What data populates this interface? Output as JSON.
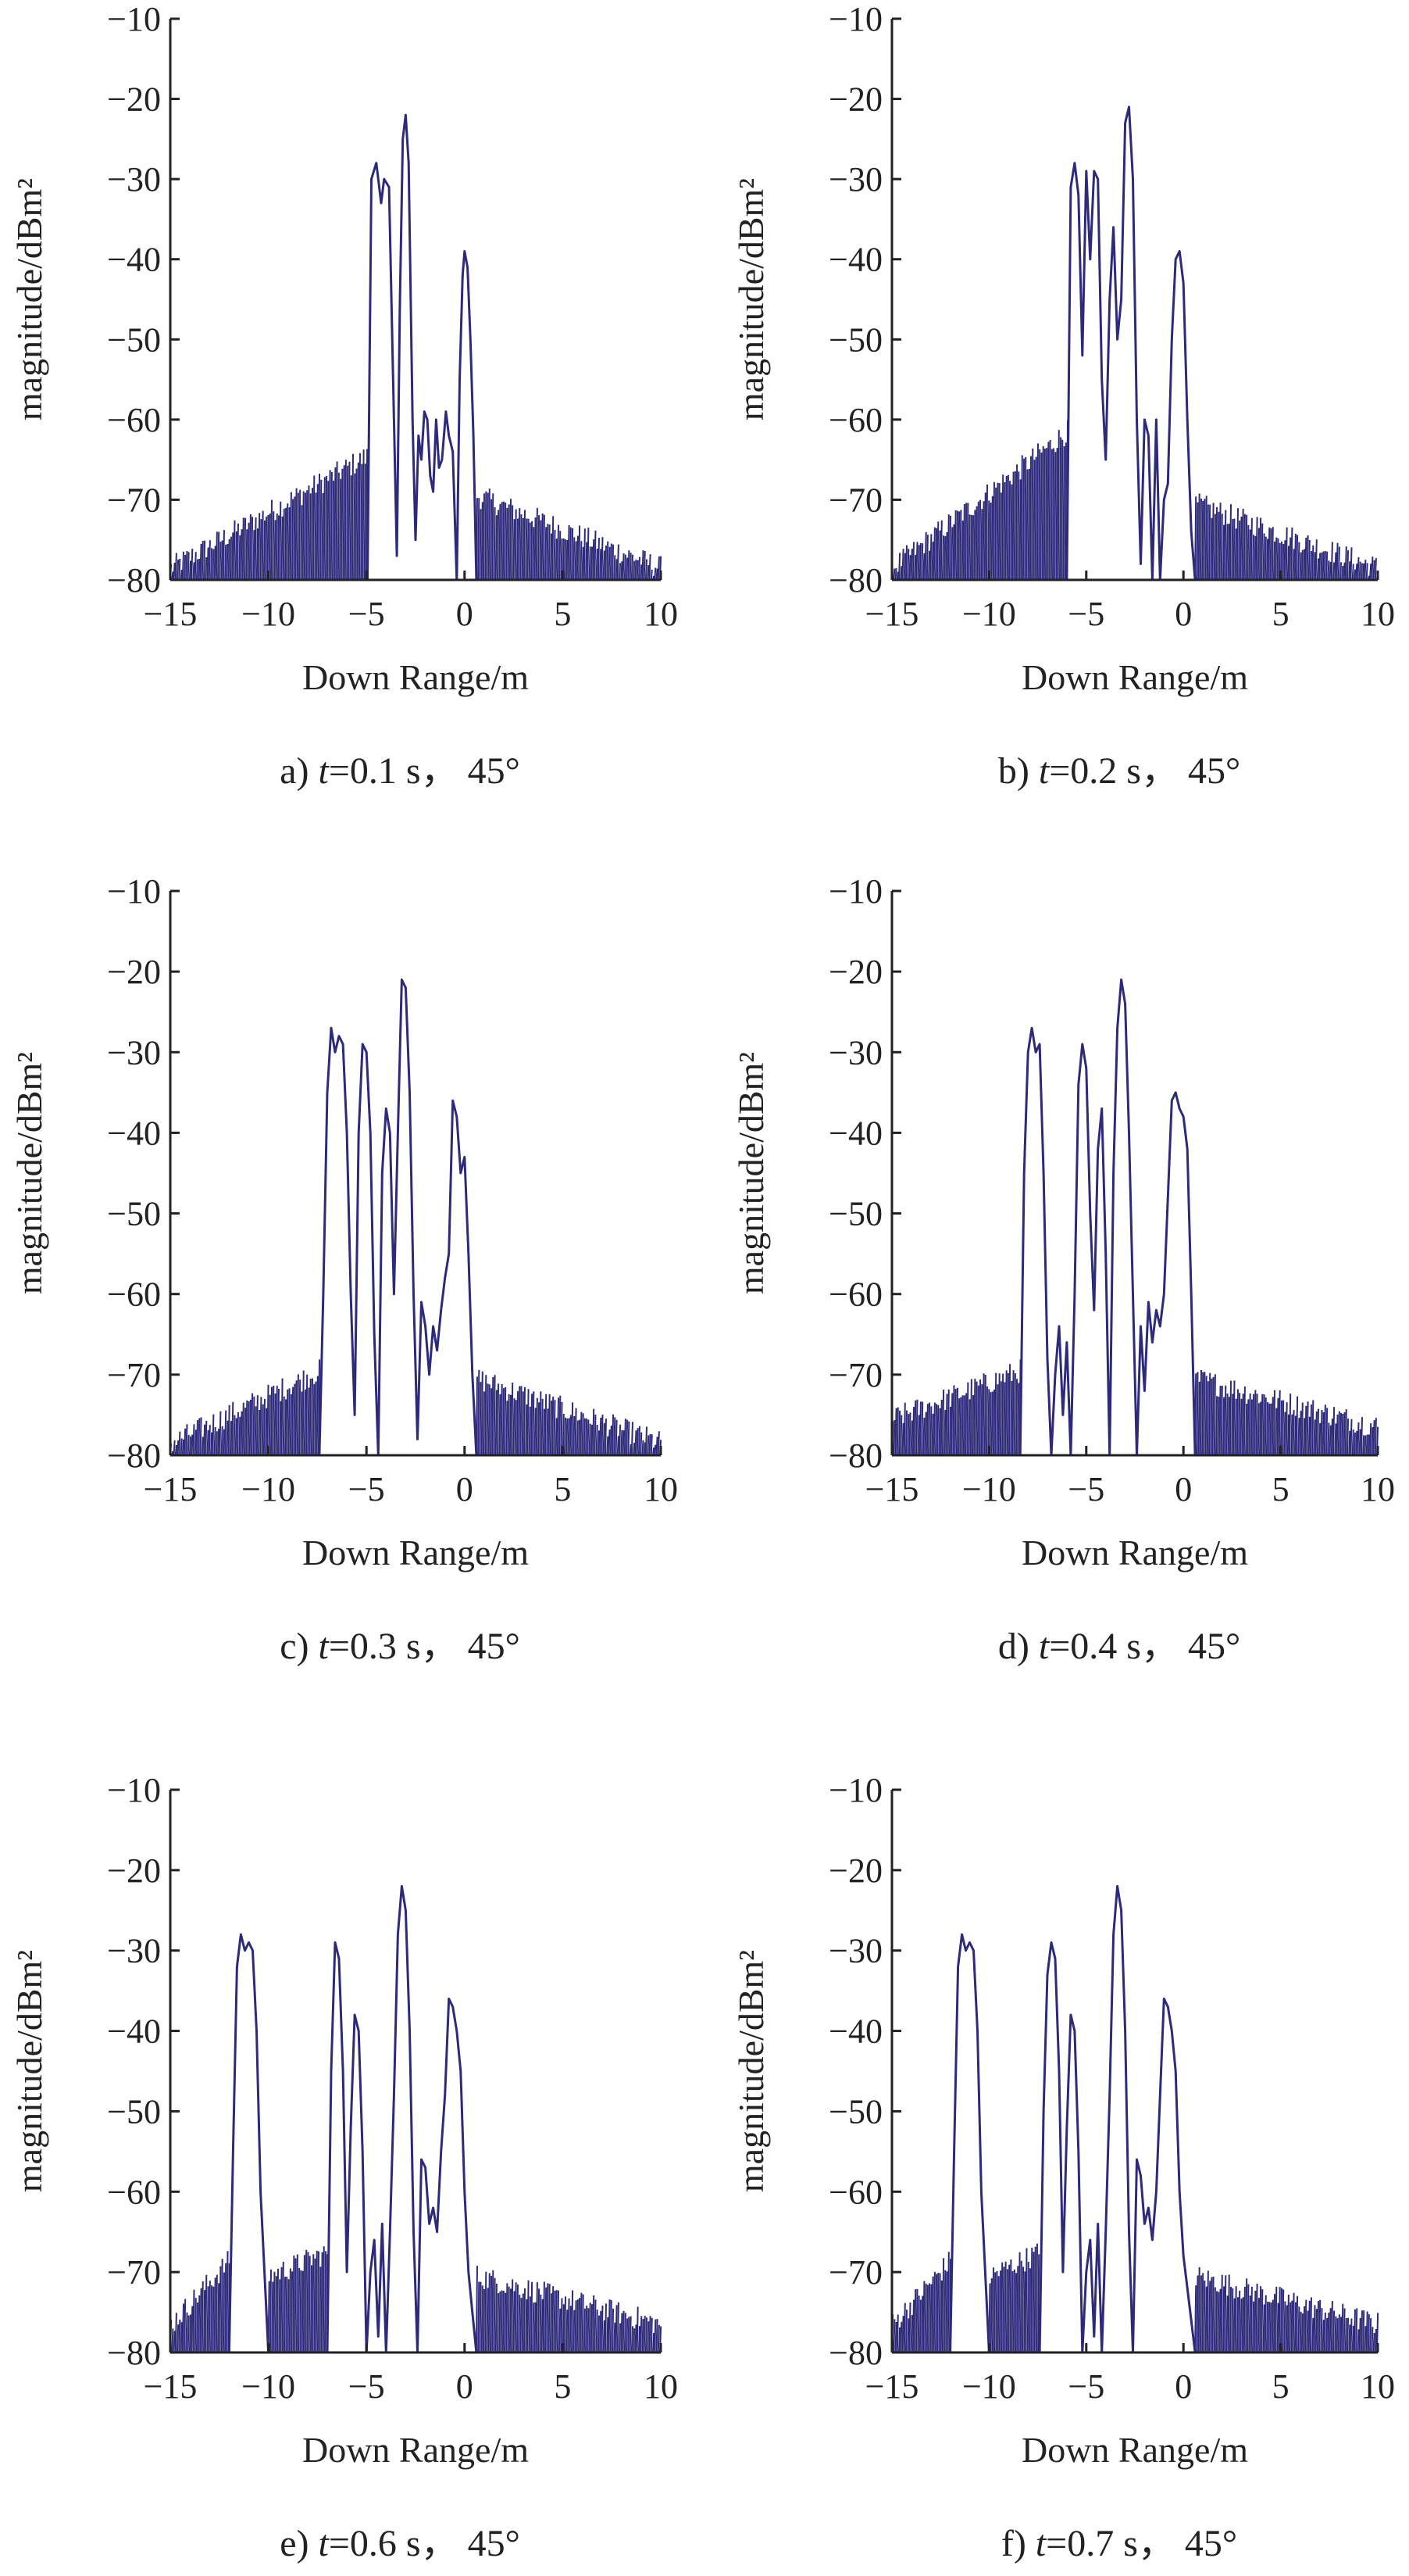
{
  "figure": {
    "line_color": "#2e2a7a",
    "axis_color": "#222222"
  },
  "chart_data": [
    {
      "type": "line",
      "caption": "a) t=0.1 s， 45°",
      "caption_parts": {
        "prefix": "a) ",
        "var": "t",
        "rest": "=0.1 s， 45°"
      },
      "xlabel": "Down Range/m",
      "ylabel": "magnitude/dBm²",
      "xlim": [
        -15,
        10
      ],
      "ylim": [
        -80,
        -10
      ],
      "xticks": [
        -15,
        -10,
        -5,
        0,
        5,
        10
      ],
      "yticks": [
        -10,
        -20,
        -30,
        -40,
        -50,
        -60,
        -70,
        -80
      ],
      "grid": false,
      "noise_floor": {
        "left": [
          -15,
          -80,
          -66
        ],
        "right": [
          0.6,
          -71,
          -80
        ],
        "gap": [
          -4.95,
          0.6
        ]
      },
      "series": [
        {
          "x": [
            -4.95,
            -4.75,
            -4.5,
            -4.25,
            -4.1,
            -3.85,
            -3.6,
            -3.45,
            -3.3,
            -3.15,
            -3.0,
            -2.85,
            -2.65,
            -2.5,
            -2.35,
            -2.2,
            -2.05,
            -1.9,
            -1.75,
            -1.6,
            -1.45,
            -1.3,
            -1.15,
            -0.95,
            -0.8,
            -0.6,
            -0.4,
            -0.25,
            -0.1,
            0.0,
            0.15,
            0.3,
            0.45,
            0.6
          ],
          "y": [
            -80,
            -30,
            -28,
            -33,
            -30,
            -31,
            -60,
            -77,
            -46,
            -25,
            -22,
            -28,
            -60,
            -75,
            -62,
            -65,
            -59,
            -60,
            -67,
            -69,
            -60,
            -66,
            -65,
            -59,
            -62,
            -64,
            -80,
            -55,
            -42,
            -39,
            -41,
            -50,
            -62,
            -80
          ]
        }
      ]
    },
    {
      "type": "line",
      "caption": "b) t=0.2 s， 45°",
      "caption_parts": {
        "prefix": "b) ",
        "var": "t",
        "rest": "=0.2 s， 45°"
      },
      "xlabel": "Down Range/m",
      "ylabel": "magnitude/dBm²",
      "xlim": [
        -15,
        10
      ],
      "ylim": [
        -80,
        -10
      ],
      "xticks": [
        -15,
        -10,
        -5,
        0,
        5,
        10
      ],
      "yticks": [
        -10,
        -20,
        -30,
        -40,
        -50,
        -60,
        -70,
        -80
      ],
      "grid": false,
      "noise_floor": {
        "left": [
          -15,
          -80,
          -63
        ],
        "right": [
          0.6,
          -72,
          -80
        ],
        "gap": [
          -6.0,
          0.6
        ]
      },
      "series": [
        {
          "x": [
            -6.0,
            -5.8,
            -5.6,
            -5.4,
            -5.2,
            -5.0,
            -4.8,
            -4.6,
            -4.4,
            -4.2,
            -4.0,
            -3.8,
            -3.6,
            -3.4,
            -3.2,
            -3.0,
            -2.8,
            -2.6,
            -2.4,
            -2.2,
            -2.0,
            -1.8,
            -1.6,
            -1.4,
            -1.2,
            -1.0,
            -0.8,
            -0.6,
            -0.4,
            -0.2,
            0.0,
            0.2,
            0.4,
            0.6
          ],
          "y": [
            -80,
            -31,
            -28,
            -32,
            -52,
            -29,
            -40,
            -29,
            -30,
            -55,
            -65,
            -45,
            -36,
            -50,
            -45,
            -23,
            -21,
            -30,
            -60,
            -78,
            -60,
            -62,
            -80,
            -60,
            -80,
            -70,
            -68,
            -50,
            -40,
            -39,
            -43,
            -60,
            -74,
            -80
          ]
        }
      ]
    },
    {
      "type": "line",
      "caption": "c) t=0.3 s， 45°",
      "caption_parts": {
        "prefix": "c) ",
        "var": "t",
        "rest": "=0.3 s， 45°"
      },
      "xlabel": "Down Range/m",
      "ylabel": "magnitude/dBm²",
      "xlim": [
        -15,
        10
      ],
      "ylim": [
        -80,
        -10
      ],
      "xticks": [
        -15,
        -10,
        -5,
        0,
        5,
        10
      ],
      "yticks": [
        -10,
        -20,
        -30,
        -40,
        -50,
        -60,
        -70,
        -80
      ],
      "grid": false,
      "noise_floor": {
        "left": [
          -15,
          -80,
          -71
        ],
        "right": [
          0.6,
          -72,
          -80
        ],
        "gap": [
          -7.4,
          0.6
        ]
      },
      "series": [
        {
          "x": [
            -7.4,
            -7.2,
            -7.0,
            -6.8,
            -6.6,
            -6.4,
            -6.2,
            -6.0,
            -5.8,
            -5.6,
            -5.4,
            -5.2,
            -5.0,
            -4.8,
            -4.6,
            -4.4,
            -4.2,
            -4.0,
            -3.8,
            -3.6,
            -3.4,
            -3.2,
            -3.0,
            -2.8,
            -2.6,
            -2.4,
            -2.2,
            -2.0,
            -1.8,
            -1.6,
            -1.4,
            -1.2,
            -1.0,
            -0.8,
            -0.6,
            -0.4,
            -0.2,
            0.0,
            0.2,
            0.4,
            0.6
          ],
          "y": [
            -80,
            -60,
            -35,
            -27,
            -30,
            -28,
            -29,
            -40,
            -60,
            -75,
            -40,
            -29,
            -30,
            -40,
            -65,
            -80,
            -45,
            -37,
            -40,
            -60,
            -40,
            -21,
            -22,
            -35,
            -60,
            -78,
            -61,
            -64,
            -70,
            -64,
            -67,
            -62,
            -58,
            -55,
            -36,
            -38,
            -45,
            -43,
            -55,
            -70,
            -80
          ]
        }
      ]
    },
    {
      "type": "line",
      "caption": "d) t=0.4 s， 45°",
      "caption_parts": {
        "prefix": "d) ",
        "var": "t",
        "rest": "=0.4 s， 45°"
      },
      "xlabel": "Down Range/m",
      "ylabel": "magnitude/dBm²",
      "xlim": [
        -15,
        10
      ],
      "ylim": [
        -80,
        -10
      ],
      "xticks": [
        -15,
        -10,
        -5,
        0,
        5,
        10
      ],
      "yticks": [
        -10,
        -20,
        -30,
        -40,
        -50,
        -60,
        -70,
        -80
      ],
      "grid": false,
      "noise_floor": {
        "left": [
          -15,
          -77,
          -71
        ],
        "right": [
          0.6,
          -72,
          -78
        ],
        "gap": [
          -8.4,
          0.6
        ]
      },
      "series": [
        {
          "x": [
            -8.4,
            -8.2,
            -8.0,
            -7.8,
            -7.6,
            -7.4,
            -7.2,
            -7.0,
            -6.8,
            -6.6,
            -6.4,
            -6.2,
            -6.0,
            -5.8,
            -5.6,
            -5.4,
            -5.2,
            -5.0,
            -4.8,
            -4.6,
            -4.4,
            -4.2,
            -4.0,
            -3.8,
            -3.6,
            -3.4,
            -3.2,
            -3.0,
            -2.8,
            -2.6,
            -2.4,
            -2.2,
            -2.0,
            -1.8,
            -1.6,
            -1.4,
            -1.2,
            -1.0,
            -0.8,
            -0.6,
            -0.4,
            -0.2,
            0.0,
            0.2,
            0.4,
            0.6
          ],
          "y": [
            -80,
            -45,
            -30,
            -27,
            -30,
            -29,
            -45,
            -68,
            -80,
            -70,
            -64,
            -75,
            -66,
            -80,
            -60,
            -34,
            -29,
            -32,
            -50,
            -62,
            -42,
            -37,
            -55,
            -80,
            -45,
            -27,
            -21,
            -24,
            -40,
            -60,
            -80,
            -64,
            -72,
            -61,
            -66,
            -62,
            -64,
            -60,
            -48,
            -36,
            -35,
            -37,
            -38,
            -42,
            -60,
            -80
          ]
        }
      ]
    },
    {
      "type": "line",
      "caption": "e) t=0.6 s， 45°",
      "caption_parts": {
        "prefix": "e) ",
        "var": "t",
        "rest": "=0.6 s， 45°"
      },
      "xlabel": "Down Range/m",
      "ylabel": "magnitude/dBm²",
      "xlim": [
        -15,
        10
      ],
      "ylim": [
        -80,
        -10
      ],
      "xticks": [
        -15,
        -10,
        -5,
        0,
        5,
        10
      ],
      "yticks": [
        -10,
        -20,
        -30,
        -40,
        -50,
        -60,
        -70,
        -80
      ],
      "grid": false,
      "noise_floor": {
        "left": [
          -15,
          -78,
          -70
        ],
        "mid": [
          -10.0,
          -7.0,
          -72,
          -69
        ],
        "right": [
          0.6,
          -72,
          -78
        ],
        "gap1": [
          -12.0,
          -10.0
        ],
        "gap2": [
          -7.0,
          0.6
        ]
      },
      "series": [
        {
          "x": [
            -12.0,
            -11.8,
            -11.6,
            -11.4,
            -11.2,
            -11.0,
            -10.8,
            -10.6,
            -10.4,
            -10.2,
            -10.0,
            -7.0,
            -6.8,
            -6.6,
            -6.4,
            -6.2,
            -6.0,
            -5.8,
            -5.6,
            -5.4,
            -5.2,
            -5.0,
            -4.8,
            -4.6,
            -4.4,
            -4.2,
            -4.0,
            -3.8,
            -3.6,
            -3.4,
            -3.2,
            -3.0,
            -2.8,
            -2.6,
            -2.4,
            -2.2,
            -2.0,
            -1.8,
            -1.6,
            -1.4,
            -1.2,
            -1.0,
            -0.8,
            -0.6,
            -0.4,
            -0.2,
            0.0,
            0.2,
            0.4,
            0.6
          ],
          "y": [
            -80,
            -55,
            -32,
            -28,
            -30,
            -29,
            -30,
            -40,
            -60,
            -70,
            -80,
            -80,
            -45,
            -29,
            -31,
            -45,
            -70,
            -52,
            -38,
            -40,
            -55,
            -80,
            -70,
            -66,
            -78,
            -64,
            -80,
            -65,
            -48,
            -28,
            -22,
            -25,
            -40,
            -65,
            -80,
            -56,
            -57,
            -64,
            -62,
            -65,
            -55,
            -48,
            -36,
            -37,
            -40,
            -45,
            -60,
            -70,
            -75,
            -80
          ]
        }
      ]
    },
    {
      "type": "line",
      "caption": "f) t=0.7 s， 45°",
      "caption_parts": {
        "prefix": "f) ",
        "var": "t",
        "rest": "=0.7 s， 45°"
      },
      "xlabel": "Down Range/m",
      "ylabel": "magnitude/dBm²",
      "xlim": [
        -15,
        10
      ],
      "ylim": [
        -80,
        -10
      ],
      "xticks": [
        -15,
        -10,
        -5,
        0,
        5,
        10
      ],
      "yticks": [
        -10,
        -20,
        -30,
        -40,
        -50,
        -60,
        -70,
        -80
      ],
      "grid": false,
      "noise_floor": {
        "left": [
          -15,
          -78,
          -70
        ],
        "mid": [
          -10.0,
          -7.4,
          -72,
          -69
        ],
        "right": [
          0.6,
          -72,
          -78
        ],
        "gap1": [
          -12.0,
          -10.0
        ],
        "gap2": [
          -7.4,
          0.6
        ]
      },
      "series": [
        {
          "x": [
            -12.0,
            -11.8,
            -11.6,
            -11.4,
            -11.2,
            -11.0,
            -10.8,
            -10.6,
            -10.4,
            -10.2,
            -10.0,
            -7.4,
            -7.2,
            -7.0,
            -6.8,
            -6.6,
            -6.4,
            -6.2,
            -6.0,
            -5.8,
            -5.6,
            -5.4,
            -5.2,
            -5.0,
            -4.8,
            -4.6,
            -4.4,
            -4.2,
            -4.0,
            -3.8,
            -3.6,
            -3.4,
            -3.2,
            -3.0,
            -2.8,
            -2.6,
            -2.4,
            -2.2,
            -2.0,
            -1.8,
            -1.6,
            -1.4,
            -1.2,
            -1.0,
            -0.8,
            -0.6,
            -0.4,
            -0.2,
            0.0,
            0.2,
            0.4,
            0.6
          ],
          "y": [
            -80,
            -55,
            -32,
            -28,
            -30,
            -29,
            -30,
            -40,
            -60,
            -70,
            -80,
            -80,
            -50,
            -33,
            -29,
            -31,
            -45,
            -70,
            -52,
            -38,
            -40,
            -55,
            -80,
            -70,
            -66,
            -78,
            -64,
            -80,
            -65,
            -48,
            -28,
            -22,
            -25,
            -40,
            -65,
            -80,
            -56,
            -58,
            -64,
            -62,
            -66,
            -60,
            -48,
            -36,
            -37,
            -40,
            -45,
            -60,
            -68,
            -72,
            -76,
            -80
          ]
        }
      ]
    }
  ]
}
